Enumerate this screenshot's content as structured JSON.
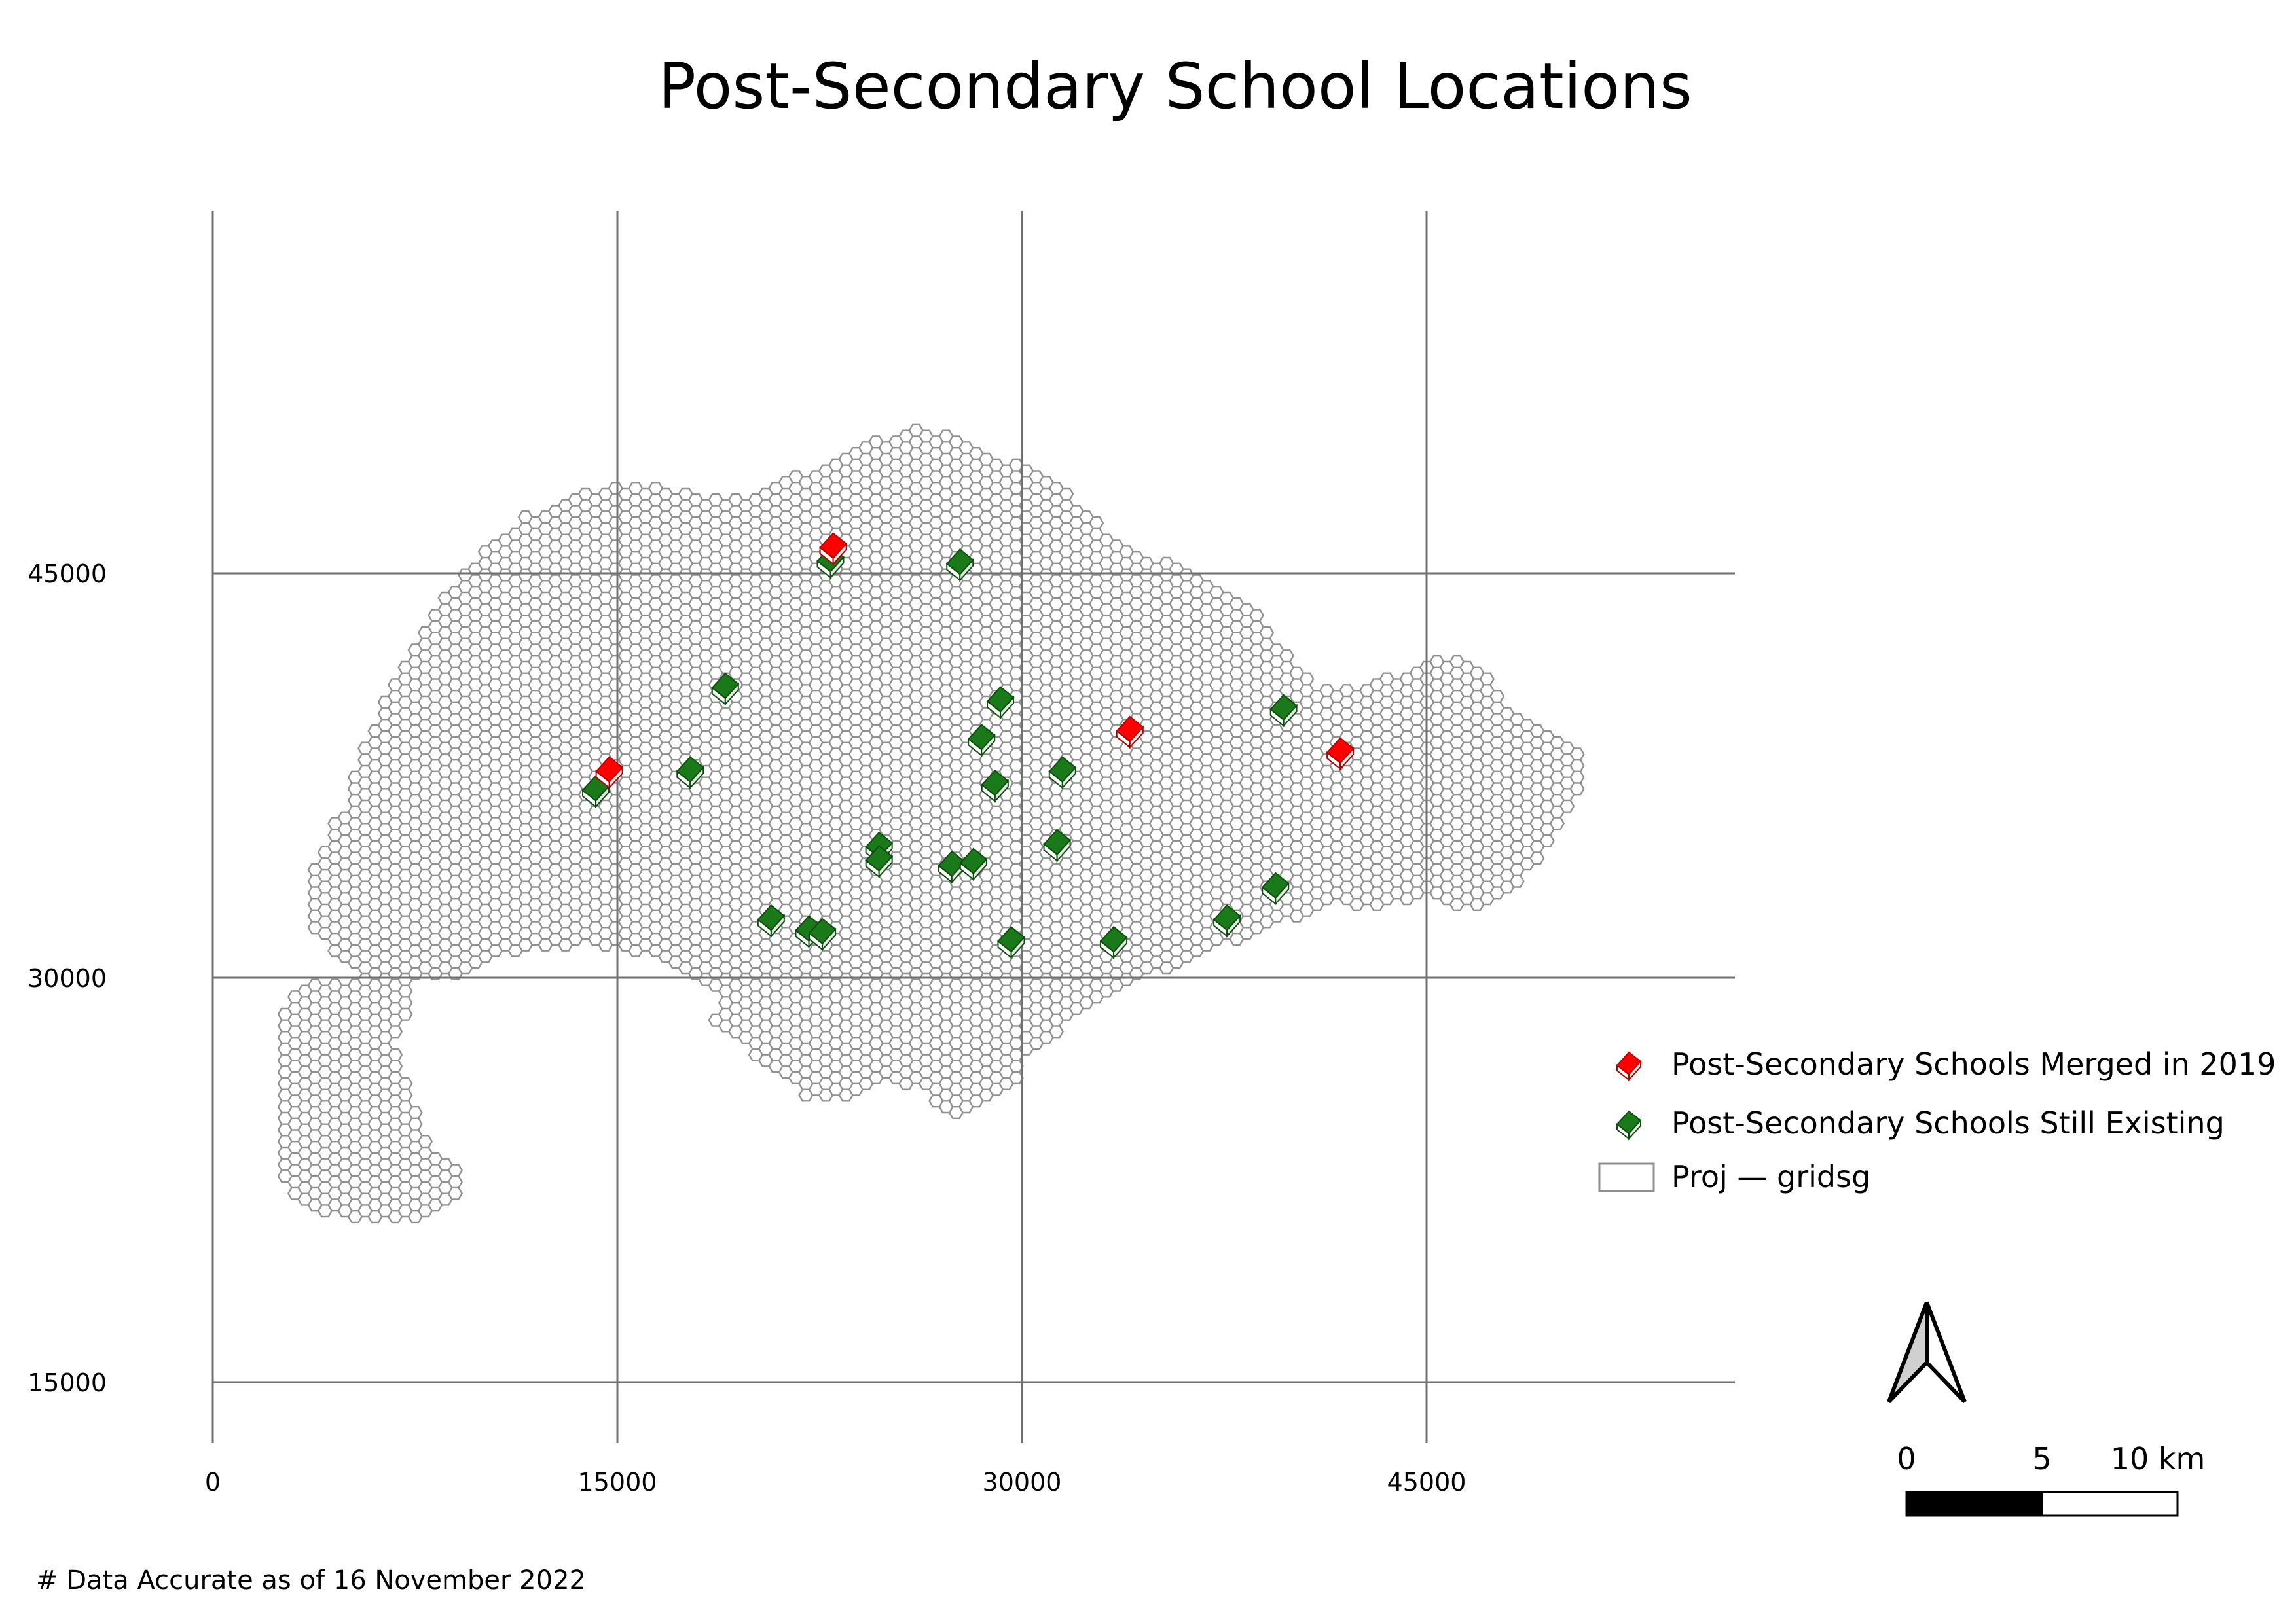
{
  "title": "Post-Secondary School Locations",
  "note": "# Data Accurate as of 16 November 2022",
  "axes": {
    "x_ticks": [
      0,
      15000,
      30000,
      45000
    ],
    "y_ticks": [
      45000,
      30000,
      15000
    ],
    "x_tick_labels": [
      "0",
      "15000",
      "30000",
      "45000"
    ],
    "y_tick_labels": [
      "45000",
      "30000",
      "15000"
    ]
  },
  "legend": {
    "merged_label": "Post-Secondary Schools Merged in 2019",
    "existing_label": "Post-Secondary Schools Still Existing",
    "grid_label": "Proj — gridsg"
  },
  "scale_bar": {
    "label_0": "0",
    "label_5": "5",
    "label_10": "10 km"
  },
  "colors": {
    "merged": "#ff0000",
    "existing": "#1a7a1a",
    "hex_stroke": "#909090"
  },
  "icons": {
    "school": "book-icon",
    "north": "north-arrow-icon"
  },
  "schools_merged": [
    [
      23000,
      46000
    ],
    [
      14700,
      37700
    ],
    [
      34000,
      39200
    ],
    [
      41800,
      38400
    ]
  ],
  "schools_existing": [
    [
      22900,
      45500
    ],
    [
      27700,
      45400
    ],
    [
      19000,
      40800
    ],
    [
      29200,
      40300
    ],
    [
      39700,
      40000
    ],
    [
      28500,
      38900
    ],
    [
      17700,
      37700
    ],
    [
      31500,
      37700
    ],
    [
      29000,
      37200
    ],
    [
      14200,
      37000
    ],
    [
      24700,
      34900
    ],
    [
      24700,
      34400
    ],
    [
      31300,
      35000
    ],
    [
      27400,
      34200
    ],
    [
      28200,
      34300
    ],
    [
      39400,
      33400
    ],
    [
      20700,
      32200
    ],
    [
      22100,
      31800
    ],
    [
      22600,
      31700
    ],
    [
      37600,
      32200
    ],
    [
      29600,
      31400
    ],
    [
      33400,
      31400
    ]
  ]
}
